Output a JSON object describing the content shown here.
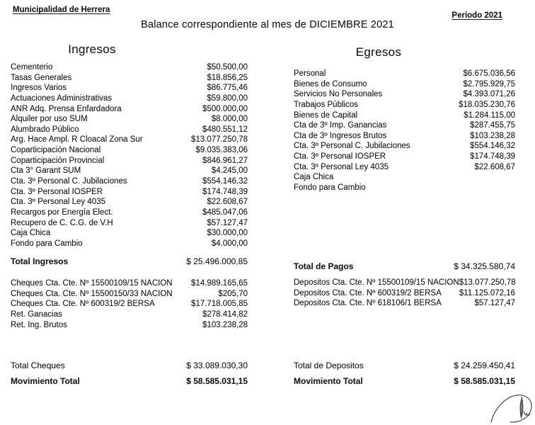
{
  "header": {
    "org": "Municipalidad de Herrera",
    "title": "Balance correspondiente al mes de DICIEMBRE 2021",
    "period": "Periodo 2021"
  },
  "ingresos": {
    "heading": "Ingresos",
    "rows": [
      {
        "label": "Cementerio",
        "value": "$50.500,00"
      },
      {
        "label": "Tasas Generales",
        "value": "$18.856,25"
      },
      {
        "label": "Ingresos Varios",
        "value": "$86.775,46"
      },
      {
        "label": "Actuaciones Administrativas",
        "value": "$59.800,00"
      },
      {
        "label": "ANR Adq. Prensa Enfardadora",
        "value": "$500.000,00"
      },
      {
        "label": "Alquiler por uso SUM",
        "value": "$8.000,00"
      },
      {
        "label": "Alumbrado Público",
        "value": "$480.551,12"
      },
      {
        "label": "Arg. Hace Ampl. R Cloacal Zona Sur",
        "value": "$13.077.250,78"
      },
      {
        "label": "Coparticipación Nacional",
        "value": "$9.035.383,06"
      },
      {
        "label": "Coparticipación Provincial",
        "value": "$846.961,27"
      },
      {
        "label": "Cta 3° Garant SUM",
        "value": "$4.245,00"
      },
      {
        "label": "Cta. 3º Personal C. Jubilaciones",
        "value": "$554.146,32"
      },
      {
        "label": "Cta. 3º Personal IOSPER",
        "value": "$174.748,39"
      },
      {
        "label": "Cta. 3º Personal Ley 4035",
        "value": "$22.608,67"
      },
      {
        "label": "Recargos por Energía Elect.",
        "value": "$485.047,06"
      },
      {
        "label": "Recupero de C. C.G. de V.H",
        "value": "$57.127,47"
      },
      {
        "label": "Caja Chica",
        "value": "$30.000,00"
      },
      {
        "label": "Fondo para Cambio",
        "value": "$4.000,00"
      }
    ],
    "total": {
      "label": "Total Ingresos",
      "value": "$ 25.496.000,85"
    },
    "cheques": [
      {
        "label": "Cheques Cta. Cte. Nº 15500109/15 NACION",
        "value": "$14.989.165,65"
      },
      {
        "label": "Cheques Cta. Cte. Nº 15500150/33 NACION",
        "value": "$205,70"
      },
      {
        "label": "Cheques Cta. Cte. Nº 600319/2 BERSA",
        "value": "$17.718.005,85"
      },
      {
        "label": "Ret. Ganacias",
        "value": "$278.414,82"
      },
      {
        "label": "Ret. Ing. Brutos",
        "value": "$103.238,28"
      }
    ],
    "total_cheques": {
      "label": "Total Cheques",
      "value": "$ 33.089.030,30"
    },
    "movimiento_total": {
      "label": "Movimiento Total",
      "value": "$ 58.585.031,15"
    }
  },
  "egresos": {
    "heading": "Egresos",
    "rows": [
      {
        "label": "Personal",
        "value": "$6.675.036,56"
      },
      {
        "label": "Bienes de Consumo",
        "value": "$2.795.929,75"
      },
      {
        "label": "Servicios No Personales",
        "value": "$4.393.071,26"
      },
      {
        "label": "Trabajos Públicos",
        "value": "$18.035.230,76"
      },
      {
        "label": "Bienes de Capital",
        "value": "$1.284.115,00"
      },
      {
        "label": "Cta de 3º Imp. Ganancias",
        "value": "$287.455,75"
      },
      {
        "label": "Cta de 3º Ingresos Brutos",
        "value": "$103.238,28"
      },
      {
        "label": "Cta. 3º Personal C. Jubilaciones",
        "value": "$554.146,32"
      },
      {
        "label": "Cta. 3º Personal IOSPER",
        "value": "$174.748,39"
      },
      {
        "label": "Cta. 3º Personal Ley 4035",
        "value": "$22.608,67"
      },
      {
        "label": "Caja Chica",
        "value": ""
      },
      {
        "label": "Fondo para Cambio",
        "value": ""
      }
    ],
    "total": {
      "label": "Total de Pagos",
      "value": "$ 34.325.580,74"
    },
    "depositos": [
      {
        "label": "Depositos Cta. Cte. Nº 15500109/15 NACION",
        "value": "$13.077.250,78"
      },
      {
        "label": "Depositos Cta. Cte. Nº 600319/2 BERSA",
        "value": "$11.125.072,16"
      },
      {
        "label": "Depositos Cta. Cte. Nº 618106/1 BERSA",
        "value": "$57.127,47"
      }
    ],
    "total_depositos": {
      "label": "Total de Depositos",
      "value": "$ 24.259.450,41"
    },
    "movimiento_total": {
      "label": "Movimiento Total",
      "value": "$ 58.585.031,15"
    }
  }
}
